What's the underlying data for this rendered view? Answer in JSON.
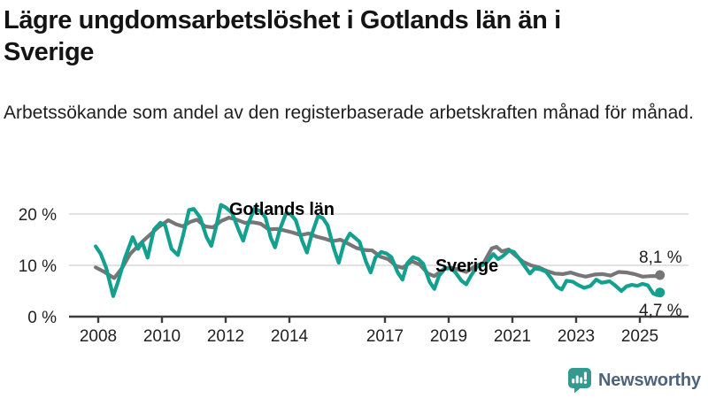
{
  "header": {
    "title": "Lägre ungdomsarbetslöshet i Gotlands län än i Sverige",
    "subtitle": "Arbetssökande som andel av den registerbaserade arbetskraften månad för månad."
  },
  "chart_data": {
    "type": "line",
    "title": "",
    "xlabel": "",
    "ylabel": "",
    "x_unit": "year (monthly data)",
    "xlim": [
      2007.9,
      2026.5
    ],
    "ylim": [
      0,
      24
    ],
    "grid": "horizontal",
    "legend_position": "inline-labels",
    "y_ticks": [
      {
        "label": "0 %",
        "value": 0
      },
      {
        "label": "10 %",
        "value": 10
      },
      {
        "label": "20 %",
        "value": 20
      }
    ],
    "x_ticks": [
      {
        "label": "2008",
        "value": 2008
      },
      {
        "label": "2010",
        "value": 2010
      },
      {
        "label": "2012",
        "value": 2012
      },
      {
        "label": "2014",
        "value": 2014
      },
      {
        "label": "2017",
        "value": 2017
      },
      {
        "label": "2019",
        "value": 2019
      },
      {
        "label": "2021",
        "value": 2021
      },
      {
        "label": "2023",
        "value": 2023
      },
      {
        "label": "2025",
        "value": 2025
      }
    ],
    "series": [
      {
        "name": "Sverige",
        "color": "#767676",
        "end_label": "8,1 %",
        "end_value": 8.1,
        "points": [
          [
            2007.92,
            9.6
          ],
          [
            2008.17,
            8.8
          ],
          [
            2008.5,
            7.5
          ],
          [
            2008.75,
            9.5
          ],
          [
            2009.0,
            12.2
          ],
          [
            2009.4,
            14.7
          ],
          [
            2009.9,
            17.5
          ],
          [
            2010.2,
            18.8
          ],
          [
            2010.45,
            18.0
          ],
          [
            2010.65,
            17.6
          ],
          [
            2010.9,
            18.5
          ],
          [
            2011.1,
            18.9
          ],
          [
            2011.35,
            17.6
          ],
          [
            2011.6,
            17.4
          ],
          [
            2011.85,
            18.6
          ],
          [
            2012.1,
            19.3
          ],
          [
            2012.35,
            18.9
          ],
          [
            2012.6,
            18.3
          ],
          [
            2012.85,
            18.4
          ],
          [
            2013.1,
            18.1
          ],
          [
            2013.35,
            17.0
          ],
          [
            2013.6,
            17.1
          ],
          [
            2013.85,
            16.8
          ],
          [
            2014.1,
            16.4
          ],
          [
            2014.35,
            15.9
          ],
          [
            2014.6,
            16.2
          ],
          [
            2014.85,
            15.6
          ],
          [
            2015.1,
            15.2
          ],
          [
            2015.35,
            14.7
          ],
          [
            2015.6,
            15.0
          ],
          [
            2015.85,
            14.2
          ],
          [
            2016.1,
            13.4
          ],
          [
            2016.35,
            13.0
          ],
          [
            2016.6,
            12.9
          ],
          [
            2016.85,
            11.7
          ],
          [
            2017.1,
            11.2
          ],
          [
            2017.35,
            9.9
          ],
          [
            2017.55,
            9.5
          ],
          [
            2017.85,
            10.8
          ],
          [
            2018.1,
            10.1
          ],
          [
            2018.35,
            8.4
          ],
          [
            2018.55,
            7.9
          ],
          [
            2018.85,
            9.3
          ],
          [
            2019.1,
            9.5
          ],
          [
            2019.35,
            9.1
          ],
          [
            2019.55,
            8.7
          ],
          [
            2019.85,
            9.9
          ],
          [
            2020.1,
            10.5
          ],
          [
            2020.35,
            13.3
          ],
          [
            2020.5,
            13.6
          ],
          [
            2020.67,
            12.7
          ],
          [
            2020.88,
            13.1
          ],
          [
            2021.08,
            12.0
          ],
          [
            2021.33,
            10.7
          ],
          [
            2021.58,
            10.0
          ],
          [
            2021.83,
            9.6
          ],
          [
            2022.08,
            8.9
          ],
          [
            2022.33,
            8.4
          ],
          [
            2022.58,
            8.3
          ],
          [
            2022.83,
            8.6
          ],
          [
            2023.08,
            8.1
          ],
          [
            2023.3,
            7.8
          ],
          [
            2023.58,
            8.2
          ],
          [
            2023.83,
            8.3
          ],
          [
            2024.08,
            8.0
          ],
          [
            2024.33,
            8.7
          ],
          [
            2024.58,
            8.6
          ],
          [
            2024.83,
            8.3
          ],
          [
            2025.08,
            7.8
          ],
          [
            2025.33,
            7.9
          ],
          [
            2025.54,
            7.9
          ],
          [
            2025.63,
            8.1
          ]
        ]
      },
      {
        "name": "Gotlands län",
        "color": "#13a08e",
        "end_label": "4,7 %",
        "end_value": 4.7,
        "points": [
          [
            2007.92,
            13.7
          ],
          [
            2008.08,
            12.2
          ],
          [
            2008.25,
            9.5
          ],
          [
            2008.47,
            4.0
          ],
          [
            2008.63,
            7.0
          ],
          [
            2008.83,
            11.3
          ],
          [
            2009.08,
            15.5
          ],
          [
            2009.25,
            13.2
          ],
          [
            2009.38,
            14.5
          ],
          [
            2009.55,
            11.5
          ],
          [
            2009.75,
            17.0
          ],
          [
            2009.95,
            18.3
          ],
          [
            2010.1,
            17.8
          ],
          [
            2010.3,
            13.2
          ],
          [
            2010.5,
            12.0
          ],
          [
            2010.67,
            16.0
          ],
          [
            2010.85,
            20.8
          ],
          [
            2011.0,
            21.0
          ],
          [
            2011.2,
            19.3
          ],
          [
            2011.4,
            15.5
          ],
          [
            2011.55,
            13.8
          ],
          [
            2011.7,
            17.5
          ],
          [
            2011.85,
            21.8
          ],
          [
            2012.0,
            21.3
          ],
          [
            2012.2,
            20.2
          ],
          [
            2012.4,
            17.0
          ],
          [
            2012.55,
            14.8
          ],
          [
            2012.7,
            18.0
          ],
          [
            2012.9,
            21.0
          ],
          [
            2013.08,
            20.6
          ],
          [
            2013.25,
            19.3
          ],
          [
            2013.42,
            15.3
          ],
          [
            2013.55,
            13.5
          ],
          [
            2013.7,
            17.0
          ],
          [
            2013.9,
            20.2
          ],
          [
            2014.05,
            19.9
          ],
          [
            2014.2,
            18.8
          ],
          [
            2014.4,
            14.8
          ],
          [
            2014.55,
            12.5
          ],
          [
            2014.7,
            16.0
          ],
          [
            2014.9,
            19.6
          ],
          [
            2015.05,
            19.2
          ],
          [
            2015.2,
            17.8
          ],
          [
            2015.4,
            13.2
          ],
          [
            2015.55,
            10.5
          ],
          [
            2015.7,
            14.0
          ],
          [
            2015.9,
            16.2
          ],
          [
            2016.05,
            15.4
          ],
          [
            2016.2,
            14.6
          ],
          [
            2016.4,
            10.8
          ],
          [
            2016.55,
            8.6
          ],
          [
            2016.7,
            11.5
          ],
          [
            2016.88,
            12.6
          ],
          [
            2017.05,
            12.3
          ],
          [
            2017.2,
            11.6
          ],
          [
            2017.4,
            8.6
          ],
          [
            2017.55,
            7.2
          ],
          [
            2017.7,
            10.4
          ],
          [
            2017.88,
            11.6
          ],
          [
            2018.05,
            11.2
          ],
          [
            2018.2,
            10.3
          ],
          [
            2018.4,
            6.8
          ],
          [
            2018.55,
            5.4
          ],
          [
            2018.7,
            8.0
          ],
          [
            2018.9,
            9.5
          ],
          [
            2019.05,
            9.4
          ],
          [
            2019.2,
            8.7
          ],
          [
            2019.4,
            7.0
          ],
          [
            2019.55,
            6.3
          ],
          [
            2019.7,
            8.0
          ],
          [
            2019.9,
            9.8
          ],
          [
            2020.05,
            10.0
          ],
          [
            2020.2,
            10.6
          ],
          [
            2020.4,
            12.2
          ],
          [
            2020.55,
            11.2
          ],
          [
            2020.7,
            11.8
          ],
          [
            2020.9,
            12.9
          ],
          [
            2021.05,
            12.6
          ],
          [
            2021.2,
            11.4
          ],
          [
            2021.4,
            9.7
          ],
          [
            2021.55,
            8.4
          ],
          [
            2021.7,
            9.4
          ],
          [
            2021.88,
            9.2
          ],
          [
            2022.05,
            8.8
          ],
          [
            2022.2,
            7.6
          ],
          [
            2022.4,
            5.8
          ],
          [
            2022.55,
            5.3
          ],
          [
            2022.7,
            7.0
          ],
          [
            2022.9,
            6.8
          ],
          [
            2023.05,
            6.2
          ],
          [
            2023.25,
            5.6
          ],
          [
            2023.45,
            6.0
          ],
          [
            2023.63,
            7.2
          ],
          [
            2023.8,
            6.6
          ],
          [
            2024.05,
            6.9
          ],
          [
            2024.2,
            6.2
          ],
          [
            2024.42,
            5.0
          ],
          [
            2024.58,
            5.9
          ],
          [
            2024.75,
            6.2
          ],
          [
            2024.92,
            6.0
          ],
          [
            2025.08,
            6.4
          ],
          [
            2025.25,
            6.1
          ],
          [
            2025.42,
            4.5
          ],
          [
            2025.54,
            4.2
          ],
          [
            2025.63,
            4.7
          ]
        ]
      }
    ],
    "colors": {
      "grid": "#d9d9d9",
      "axis": "#3d3d3d",
      "tick_text": "#222222"
    }
  },
  "footer": {
    "brand": "Newsworthy",
    "brand_color": "#4e637c",
    "icon_color": "#35998f"
  }
}
